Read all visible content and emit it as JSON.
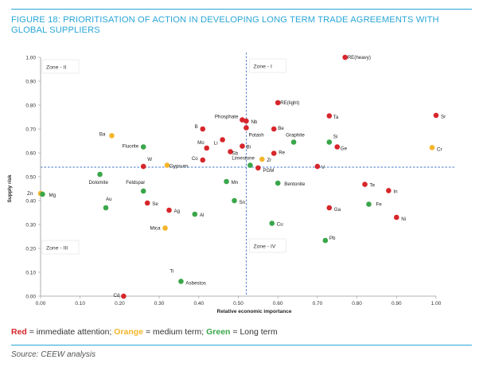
{
  "figure_title": "FIGURE 18: PRIORITISATION OF ACTION IN DEVELOPING LONG TERM TRADE AGREEMENTS WITH GLOBAL SUPPLIERS",
  "legend": {
    "red_word": "Red",
    "red_text": " = immediate attention; ",
    "orange_word": "Orange",
    "orange_text": " = medium term; ",
    "green_word": "Green",
    "green_text": " = Long term"
  },
  "source": "Source: CEEW analysis",
  "colors": {
    "red": "#d7262b",
    "orange": "#f4b52a",
    "green": "#3aa64a",
    "accent": "#2aa6d6",
    "divider": "#3f77c9"
  },
  "chart_data": {
    "type": "scatter",
    "xlabel": "Relative economic importance",
    "ylabel": "Supply risk",
    "xlim": [
      0,
      1
    ],
    "ylim": [
      0,
      1
    ],
    "x_ticks": [
      "0.00",
      "0.10",
      "0.20",
      "0.30",
      "0.40",
      "0.50",
      "0.60",
      "0.70",
      "0.80",
      "0.90",
      "1.00"
    ],
    "y_ticks": [
      "0.00",
      "0.10",
      "0.20",
      "0.30",
      "0.40",
      "0.50",
      "0.60",
      "0.70",
      "0.80",
      "0.90",
      "1.00"
    ],
    "divider_x": 0.52,
    "divider_y": 0.54,
    "zones": [
      "Zone - II",
      "Zone - I",
      "Zone - III",
      "Zone - IV"
    ],
    "points": [
      {
        "label": "RE(heavy)",
        "x": 0.77,
        "y": 1.0,
        "color": "red"
      },
      {
        "label": "RE(light)",
        "x": 0.6,
        "y": 0.81,
        "color": "red"
      },
      {
        "label": "Ta",
        "x": 0.73,
        "y": 0.755,
        "color": "red"
      },
      {
        "label": "Sr",
        "x": 1.0,
        "y": 0.757,
        "color": "red"
      },
      {
        "label": "Phosphate",
        "x": 0.51,
        "y": 0.738,
        "color": "red"
      },
      {
        "label": "Nb",
        "x": 0.52,
        "y": 0.733,
        "color": "red"
      },
      {
        "label": "Potash",
        "x": 0.52,
        "y": 0.705,
        "color": "red"
      },
      {
        "label": "Be",
        "x": 0.59,
        "y": 0.7,
        "color": "red"
      },
      {
        "label": "B",
        "x": 0.41,
        "y": 0.7,
        "color": "red"
      },
      {
        "label": "Graphite",
        "x": 0.64,
        "y": 0.645,
        "color": "green"
      },
      {
        "label": "Si",
        "x": 0.73,
        "y": 0.645,
        "color": "green"
      },
      {
        "label": "Ge",
        "x": 0.75,
        "y": 0.625,
        "color": "red"
      },
      {
        "label": "Cr",
        "x": 0.99,
        "y": 0.622,
        "color": "orange"
      },
      {
        "label": "Ba",
        "x": 0.18,
        "y": 0.672,
        "color": "orange"
      },
      {
        "label": "Fluorite",
        "x": 0.26,
        "y": 0.625,
        "color": "green"
      },
      {
        "label": "Mo",
        "x": 0.42,
        "y": 0.62,
        "color": "red"
      },
      {
        "label": "Li",
        "x": 0.46,
        "y": 0.655,
        "color": "red"
      },
      {
        "label": "Sb",
        "x": 0.48,
        "y": 0.605,
        "color": "red"
      },
      {
        "label": "Bi",
        "x": 0.51,
        "y": 0.628,
        "color": "red"
      },
      {
        "label": "Re",
        "x": 0.59,
        "y": 0.598,
        "color": "red"
      },
      {
        "label": "Co",
        "x": 0.41,
        "y": 0.57,
        "color": "red"
      },
      {
        "label": "Limestone",
        "x": 0.53,
        "y": 0.548,
        "color": "green"
      },
      {
        "label": "Zr",
        "x": 0.56,
        "y": 0.573,
        "color": "orange"
      },
      {
        "label": "PGM",
        "x": 0.55,
        "y": 0.537,
        "color": "red"
      },
      {
        "label": "V",
        "x": 0.7,
        "y": 0.543,
        "color": "red"
      },
      {
        "label": "W",
        "x": 0.26,
        "y": 0.543,
        "color": "red"
      },
      {
        "label": "Gypsum",
        "x": 0.32,
        "y": 0.548,
        "color": "orange"
      },
      {
        "label": "Dolomite",
        "x": 0.15,
        "y": 0.51,
        "color": "green"
      },
      {
        "label": "Mn",
        "x": 0.47,
        "y": 0.48,
        "color": "green"
      },
      {
        "label": "Bentonite",
        "x": 0.6,
        "y": 0.473,
        "color": "green"
      },
      {
        "label": "Te",
        "x": 0.82,
        "y": 0.468,
        "color": "red"
      },
      {
        "label": "In",
        "x": 0.88,
        "y": 0.442,
        "color": "red"
      },
      {
        "label": "Zn",
        "x": 0.0,
        "y": 0.43,
        "color": "orange"
      },
      {
        "label": "Mg",
        "x": 0.005,
        "y": 0.427,
        "color": "green"
      },
      {
        "label": "Feldspar",
        "x": 0.26,
        "y": 0.44,
        "color": "green"
      },
      {
        "label": "Sn",
        "x": 0.49,
        "y": 0.4,
        "color": "green"
      },
      {
        "label": "Se",
        "x": 0.27,
        "y": 0.39,
        "color": "red"
      },
      {
        "label": "Fe",
        "x": 0.83,
        "y": 0.385,
        "color": "green"
      },
      {
        "label": "Au",
        "x": 0.165,
        "y": 0.37,
        "color": "green"
      },
      {
        "label": "Ga",
        "x": 0.73,
        "y": 0.37,
        "color": "red"
      },
      {
        "label": "Ag",
        "x": 0.325,
        "y": 0.36,
        "color": "red"
      },
      {
        "label": "Al",
        "x": 0.39,
        "y": 0.343,
        "color": "green"
      },
      {
        "label": "Ni",
        "x": 0.9,
        "y": 0.33,
        "color": "red"
      },
      {
        "label": "Cu",
        "x": 0.585,
        "y": 0.305,
        "color": "green"
      },
      {
        "label": "Mica",
        "x": 0.315,
        "y": 0.285,
        "color": "orange"
      },
      {
        "label": "Pb",
        "x": 0.72,
        "y": 0.233,
        "color": "green"
      },
      {
        "label": "Ti",
        "x": 0.355,
        "y": 0.062,
        "color": "green"
      },
      {
        "label": "Asbestos",
        "x": 0.355,
        "y": 0.062,
        "color": "green"
      },
      {
        "label": "Cd",
        "x": 0.21,
        "y": 0.0,
        "color": "red"
      }
    ]
  }
}
